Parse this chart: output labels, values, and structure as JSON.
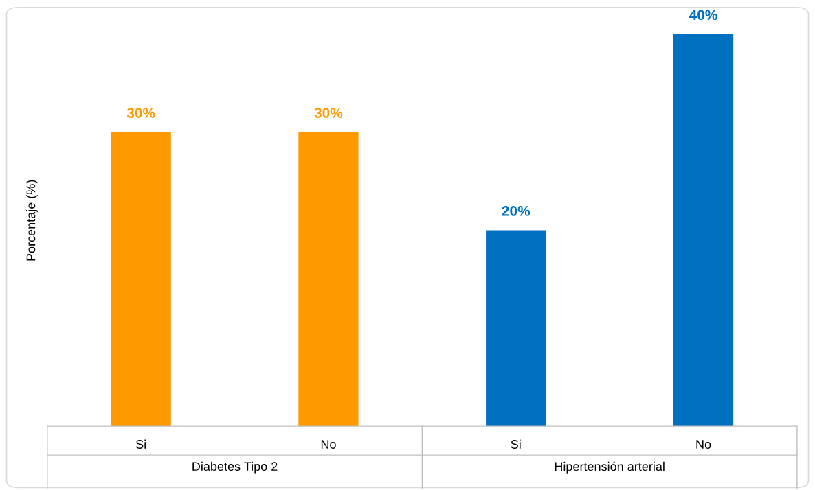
{
  "chart_data": {
    "type": "bar",
    "ylabel": "Porcentaje (%)",
    "categories": [
      "Si",
      "No",
      "Si",
      "No"
    ],
    "values": [
      30,
      30,
      20,
      40
    ],
    "colors": [
      "#ff9900",
      "#ff9900",
      "#0070c0",
      "#0070c0"
    ],
    "value_labels": [
      "30%",
      "30%",
      "20%",
      "40%"
    ],
    "annotations": [
      "Diabetes Tipo 2",
      "Hipertensión arterial"
    ],
    "grid": false,
    "legend": false
  }
}
